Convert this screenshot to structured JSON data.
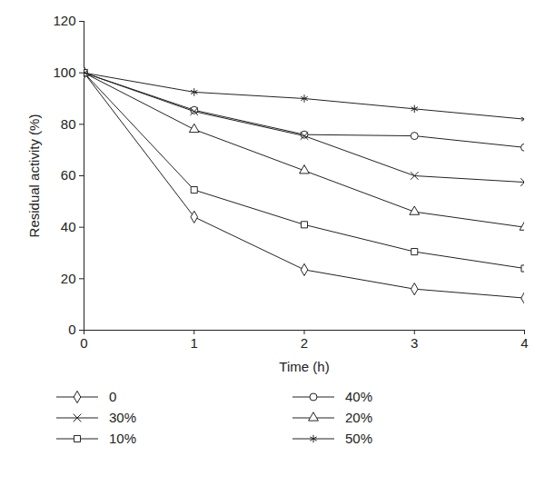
{
  "chart_data": {
    "type": "line",
    "x_label": "Time (h)",
    "y_label": "Residual activity (%)",
    "x": [
      0,
      1,
      2,
      3,
      4
    ],
    "xlim": [
      0,
      4
    ],
    "xticks": [
      0,
      1,
      2,
      3,
      4
    ],
    "ylim": [
      0,
      120
    ],
    "yticks": [
      0,
      20,
      40,
      60,
      80,
      100,
      120
    ],
    "grid": false,
    "legend": "bottom",
    "series": [
      {
        "name": "0",
        "color": "#222222",
        "marker": "diamond",
        "values": [
          100,
          44,
          23.5,
          16,
          12.5
        ]
      },
      {
        "name": "40%",
        "color": "#222222",
        "marker": "circle",
        "values": [
          100,
          85.5,
          76,
          75.5,
          71
        ]
      },
      {
        "name": "30%",
        "color": "#222222",
        "marker": "times",
        "values": [
          100,
          85,
          75.5,
          60,
          57.5
        ]
      },
      {
        "name": "20%",
        "color": "#222222",
        "marker": "triangle",
        "values": [
          100,
          78,
          62,
          46,
          40
        ]
      },
      {
        "name": "10%",
        "color": "#222222",
        "marker": "square",
        "values": [
          100,
          54.5,
          41,
          30.5,
          24
        ]
      },
      {
        "name": "50%",
        "color": "#222222",
        "marker": "asterisk",
        "values": [
          100,
          92.5,
          90,
          86,
          82
        ]
      }
    ]
  }
}
